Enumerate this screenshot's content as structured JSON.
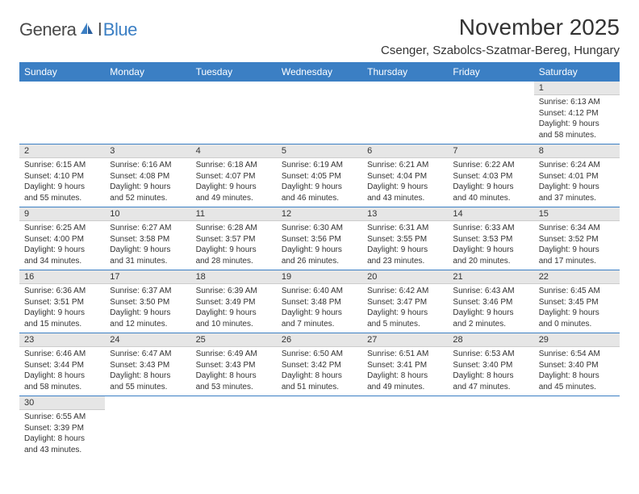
{
  "logo": {
    "textGeneral": "Genera",
    "textL": "l",
    "textBlue": "Blue"
  },
  "header": {
    "monthTitle": "November 2025",
    "location": "Csenger, Szabolcs-Szatmar-Bereg, Hungary"
  },
  "colors": {
    "headerBg": "#3b7fc4",
    "headerText": "#ffffff",
    "dayNumBg": "#e6e6e6",
    "border": "#3b7fc4",
    "text": "#333333",
    "logoBlue": "#3b7fc4",
    "logoGray": "#4a4a4a"
  },
  "dayNames": [
    "Sunday",
    "Monday",
    "Tuesday",
    "Wednesday",
    "Thursday",
    "Friday",
    "Saturday"
  ],
  "weeks": [
    [
      null,
      null,
      null,
      null,
      null,
      null,
      {
        "num": "1",
        "sunrise": "6:13 AM",
        "sunset": "4:12 PM",
        "daylight": "9 hours and 58 minutes."
      }
    ],
    [
      {
        "num": "2",
        "sunrise": "6:15 AM",
        "sunset": "4:10 PM",
        "daylight": "9 hours and 55 minutes."
      },
      {
        "num": "3",
        "sunrise": "6:16 AM",
        "sunset": "4:08 PM",
        "daylight": "9 hours and 52 minutes."
      },
      {
        "num": "4",
        "sunrise": "6:18 AM",
        "sunset": "4:07 PM",
        "daylight": "9 hours and 49 minutes."
      },
      {
        "num": "5",
        "sunrise": "6:19 AM",
        "sunset": "4:05 PM",
        "daylight": "9 hours and 46 minutes."
      },
      {
        "num": "6",
        "sunrise": "6:21 AM",
        "sunset": "4:04 PM",
        "daylight": "9 hours and 43 minutes."
      },
      {
        "num": "7",
        "sunrise": "6:22 AM",
        "sunset": "4:03 PM",
        "daylight": "9 hours and 40 minutes."
      },
      {
        "num": "8",
        "sunrise": "6:24 AM",
        "sunset": "4:01 PM",
        "daylight": "9 hours and 37 minutes."
      }
    ],
    [
      {
        "num": "9",
        "sunrise": "6:25 AM",
        "sunset": "4:00 PM",
        "daylight": "9 hours and 34 minutes."
      },
      {
        "num": "10",
        "sunrise": "6:27 AM",
        "sunset": "3:58 PM",
        "daylight": "9 hours and 31 minutes."
      },
      {
        "num": "11",
        "sunrise": "6:28 AM",
        "sunset": "3:57 PM",
        "daylight": "9 hours and 28 minutes."
      },
      {
        "num": "12",
        "sunrise": "6:30 AM",
        "sunset": "3:56 PM",
        "daylight": "9 hours and 26 minutes."
      },
      {
        "num": "13",
        "sunrise": "6:31 AM",
        "sunset": "3:55 PM",
        "daylight": "9 hours and 23 minutes."
      },
      {
        "num": "14",
        "sunrise": "6:33 AM",
        "sunset": "3:53 PM",
        "daylight": "9 hours and 20 minutes."
      },
      {
        "num": "15",
        "sunrise": "6:34 AM",
        "sunset": "3:52 PM",
        "daylight": "9 hours and 17 minutes."
      }
    ],
    [
      {
        "num": "16",
        "sunrise": "6:36 AM",
        "sunset": "3:51 PM",
        "daylight": "9 hours and 15 minutes."
      },
      {
        "num": "17",
        "sunrise": "6:37 AM",
        "sunset": "3:50 PM",
        "daylight": "9 hours and 12 minutes."
      },
      {
        "num": "18",
        "sunrise": "6:39 AM",
        "sunset": "3:49 PM",
        "daylight": "9 hours and 10 minutes."
      },
      {
        "num": "19",
        "sunrise": "6:40 AM",
        "sunset": "3:48 PM",
        "daylight": "9 hours and 7 minutes."
      },
      {
        "num": "20",
        "sunrise": "6:42 AM",
        "sunset": "3:47 PM",
        "daylight": "9 hours and 5 minutes."
      },
      {
        "num": "21",
        "sunrise": "6:43 AM",
        "sunset": "3:46 PM",
        "daylight": "9 hours and 2 minutes."
      },
      {
        "num": "22",
        "sunrise": "6:45 AM",
        "sunset": "3:45 PM",
        "daylight": "9 hours and 0 minutes."
      }
    ],
    [
      {
        "num": "23",
        "sunrise": "6:46 AM",
        "sunset": "3:44 PM",
        "daylight": "8 hours and 58 minutes."
      },
      {
        "num": "24",
        "sunrise": "6:47 AM",
        "sunset": "3:43 PM",
        "daylight": "8 hours and 55 minutes."
      },
      {
        "num": "25",
        "sunrise": "6:49 AM",
        "sunset": "3:43 PM",
        "daylight": "8 hours and 53 minutes."
      },
      {
        "num": "26",
        "sunrise": "6:50 AM",
        "sunset": "3:42 PM",
        "daylight": "8 hours and 51 minutes."
      },
      {
        "num": "27",
        "sunrise": "6:51 AM",
        "sunset": "3:41 PM",
        "daylight": "8 hours and 49 minutes."
      },
      {
        "num": "28",
        "sunrise": "6:53 AM",
        "sunset": "3:40 PM",
        "daylight": "8 hours and 47 minutes."
      },
      {
        "num": "29",
        "sunrise": "6:54 AM",
        "sunset": "3:40 PM",
        "daylight": "8 hours and 45 minutes."
      }
    ],
    [
      {
        "num": "30",
        "sunrise": "6:55 AM",
        "sunset": "3:39 PM",
        "daylight": "8 hours and 43 minutes."
      },
      null,
      null,
      null,
      null,
      null,
      null
    ]
  ],
  "labels": {
    "sunrise": "Sunrise:",
    "sunset": "Sunset:",
    "daylight": "Daylight:"
  }
}
